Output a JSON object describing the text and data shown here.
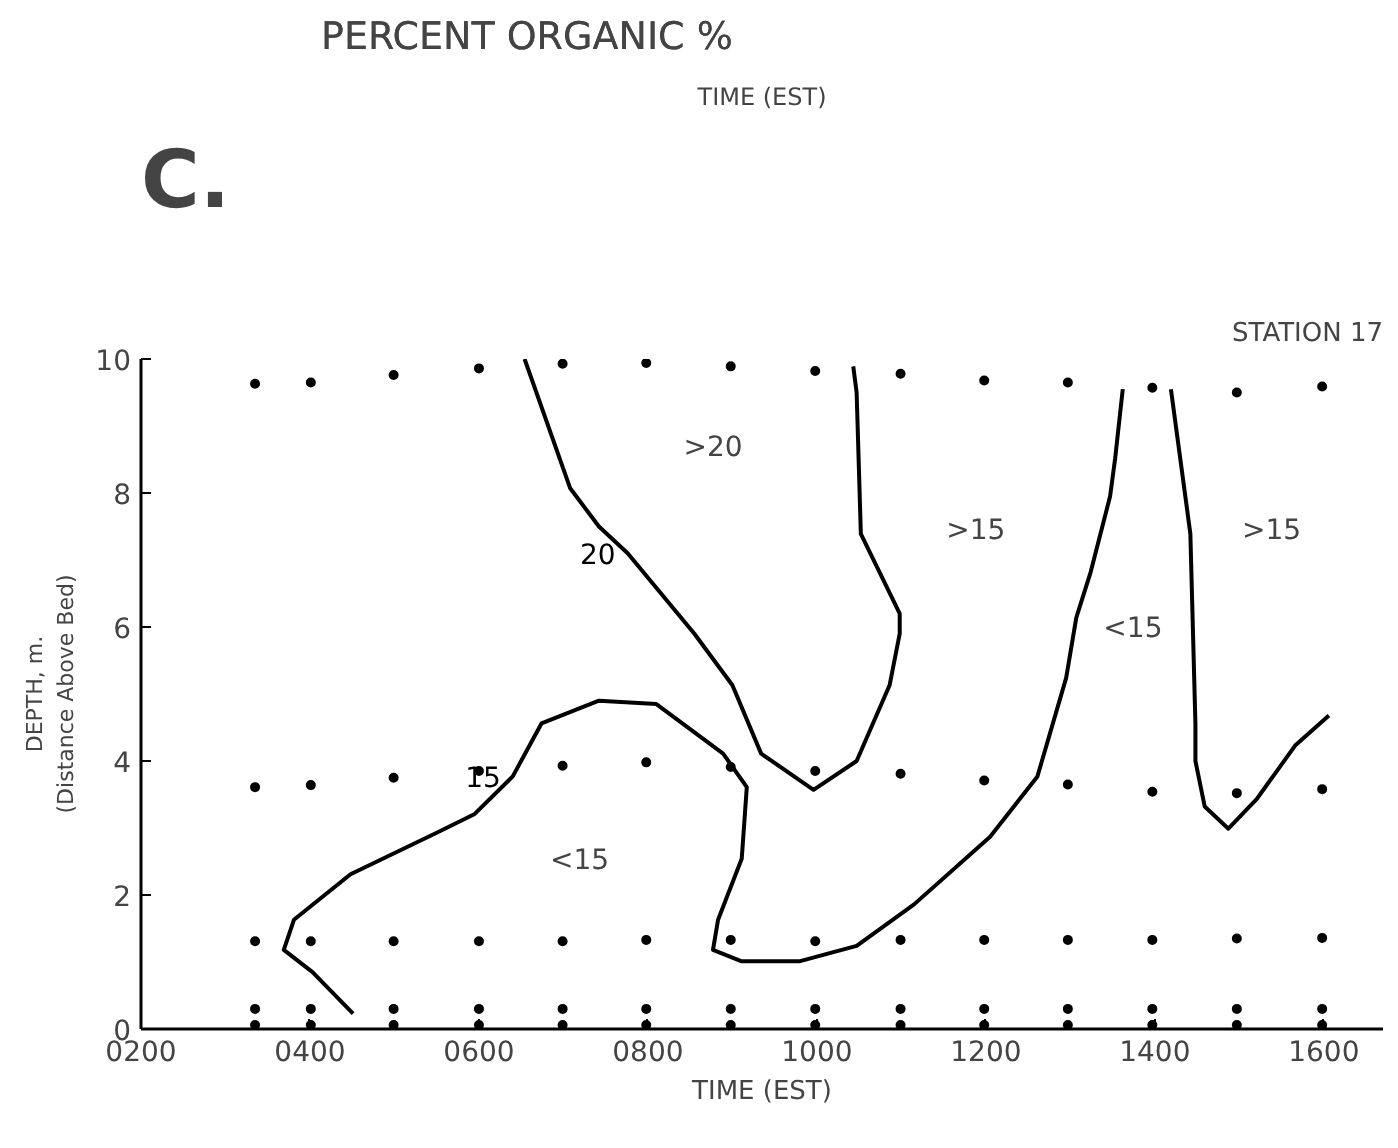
{
  "chart_data": {
    "type": "line",
    "title": "PERCENT ORGANIC %",
    "xlabel": "TIME (EST)",
    "ylabel": "DEPTH, m.\n(Distance Above Bed)",
    "xlim": [
      200,
      1670
    ],
    "ylim": [
      0,
      10
    ],
    "xticks": [
      {
        "value": 200,
        "label": "0200"
      },
      {
        "value": 400,
        "label": "0400"
      },
      {
        "value": 600,
        "label": "0600"
      },
      {
        "value": 800,
        "label": "0800"
      },
      {
        "value": 1000,
        "label": "1000"
      },
      {
        "value": 1200,
        "label": "1200"
      },
      {
        "value": 1400,
        "label": "1400"
      },
      {
        "value": 1600,
        "label": "1600"
      }
    ],
    "yticks": [
      0,
      2,
      4,
      6,
      8,
      10
    ],
    "grid": false,
    "line_style": "solid",
    "series": [
      {
        "name": "20",
        "color": "#000000",
        "marker": "none",
        "x": [
          654,
          708,
          742,
          776,
          855,
          900,
          934,
          996,
          1047,
          1086,
          1098,
          1098,
          1052,
          1047,
          1043
        ],
        "values": [
          10.0,
          8.07,
          7.5,
          7.1,
          5.9,
          5.13,
          4.11,
          3.57,
          4.0,
          5.13,
          5.9,
          6.2,
          7.39,
          9.5,
          9.89
        ]
      },
      {
        "name": "15",
        "color": "#000000",
        "marker": "none",
        "x": [
          451,
          403,
          369,
          381,
          448,
          550,
          595,
          640,
          674,
          742,
          810,
          889,
          917,
          911,
          883,
          877,
          911,
          979,
          1047,
          1115,
          1205,
          1261,
          1295,
          1307,
          1324,
          1347,
          1353,
          1362
        ],
        "values": [
          0.23,
          0.85,
          1.18,
          1.63,
          2.31,
          2.93,
          3.21,
          3.77,
          4.56,
          4.9,
          4.85,
          4.11,
          3.61,
          2.54,
          1.63,
          1.18,
          1.01,
          1.01,
          1.24,
          1.86,
          2.87,
          3.77,
          5.24,
          6.14,
          6.82,
          7.95,
          8.52,
          9.55
        ]
      },
      {
        "color": "#000000",
        "marker": "none",
        "x": [
          1419,
          1442,
          1448,
          1448,
          1459,
          1487,
          1521,
          1566,
          1606
        ],
        "values": [
          9.55,
          7.39,
          4.55,
          4.0,
          3.32,
          2.99,
          3.44,
          4.23,
          4.68
        ]
      },
      {
        "color": "#000000",
        "type": "scatter",
        "marker": "circle",
        "x": [
          335,
          401,
          499,
          600,
          699,
          798,
          898,
          998,
          1099,
          1198,
          1297,
          1397,
          1497,
          1598,
          335,
          401,
          499,
          600,
          699,
          798,
          898,
          998,
          1099,
          1198,
          1297,
          1397,
          1497,
          1598,
          335,
          401,
          499,
          600,
          699,
          798,
          898,
          998,
          1099,
          1198,
          1297,
          1397,
          1497,
          1598,
          335,
          401,
          499,
          600,
          699,
          798,
          898,
          998,
          1099,
          1198,
          1297,
          1397,
          1497,
          1598,
          335,
          401,
          499,
          600,
          699,
          798,
          898,
          998,
          1099,
          1198,
          1297,
          1397,
          1497,
          1598
        ],
        "values": [
          9.63,
          9.65,
          9.76,
          9.86,
          9.93,
          9.94,
          9.89,
          9.82,
          9.78,
          9.68,
          9.65,
          9.57,
          9.5,
          9.59,
          3.61,
          3.64,
          3.75,
          3.85,
          3.93,
          3.98,
          3.91,
          3.85,
          3.81,
          3.71,
          3.65,
          3.54,
          3.52,
          3.58,
          1.31,
          1.31,
          1.31,
          1.31,
          1.31,
          1.33,
          1.33,
          1.31,
          1.33,
          1.33,
          1.33,
          1.33,
          1.35,
          1.36,
          0.3,
          0.3,
          0.3,
          0.3,
          0.3,
          0.3,
          0.3,
          0.3,
          0.3,
          0.3,
          0.3,
          0.3,
          0.3,
          0.3,
          0.06,
          0.06,
          0.06,
          0.06,
          0.06,
          0.06,
          0.06,
          0.06,
          0.06,
          0.06,
          0.06,
          0.06,
          0.06,
          0.06
        ]
      }
    ],
    "annotations": [
      "C.",
      "TIME (EST)",
      "STATION 17",
      ">20",
      ">15",
      ">15",
      "<15",
      "<15"
    ]
  }
}
